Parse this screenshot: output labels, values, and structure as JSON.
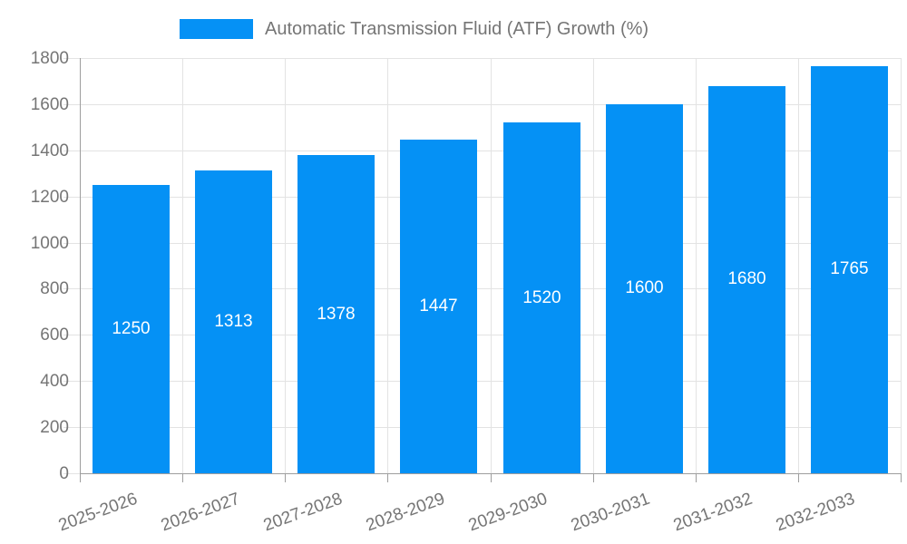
{
  "legend": {
    "label": "Automatic Transmission Fluid (ATF) Growth (%)"
  },
  "chart_data": {
    "type": "bar",
    "title": "",
    "xlabel": "",
    "ylabel": "",
    "categories": [
      "2025-2026",
      "2026-2027",
      "2027-2028",
      "2028-2029",
      "2029-2030",
      "2030-2031",
      "2031-2032",
      "2032-2033"
    ],
    "values": [
      1250,
      1313,
      1378,
      1447,
      1520,
      1600,
      1680,
      1765
    ],
    "series_name": "Automatic Transmission Fluid (ATF) Growth (%)",
    "value_labels": [
      "1250",
      "1313",
      "1378",
      "1447",
      "1520",
      "1600",
      "1680",
      "1765"
    ],
    "y_tick_labels": [
      "0",
      "200",
      "400",
      "600",
      "800",
      "1000",
      "1200",
      "1400",
      "1600",
      "1800"
    ],
    "ylim": [
      0,
      1800
    ],
    "ytick_step": 200,
    "grid": true,
    "legend_position": "top",
    "colors": {
      "bar": "#0591f5",
      "value_label": "#ffffff",
      "gridline": "#e3e3e3",
      "axis": "#9e9e9e",
      "tick_text": "#757575",
      "background": "#ffffff"
    }
  }
}
